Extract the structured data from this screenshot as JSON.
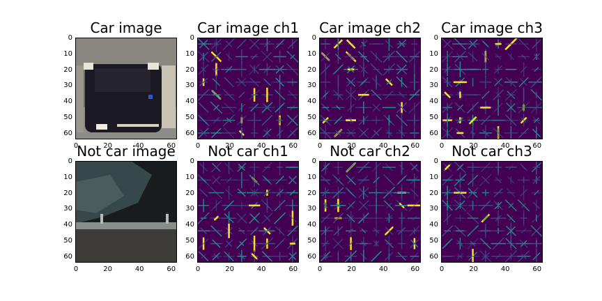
{
  "panels": [
    {
      "title": "Car image",
      "kind": "photo-car"
    },
    {
      "title": "Car image ch1",
      "kind": "hog",
      "seed": 1
    },
    {
      "title": "Car image ch2",
      "kind": "hog",
      "seed": 2
    },
    {
      "title": "Car image ch3",
      "kind": "hog",
      "seed": 3
    },
    {
      "title": "Not car image",
      "kind": "photo-notcar"
    },
    {
      "title": "Not car ch1",
      "kind": "hog",
      "seed": 4
    },
    {
      "title": "Not car ch2",
      "kind": "hog",
      "seed": 5
    },
    {
      "title": "Not car ch3",
      "kind": "hog",
      "seed": 6
    }
  ],
  "axis": {
    "yticks": [
      "0",
      "10",
      "20",
      "30",
      "40",
      "50",
      "60"
    ],
    "xticks": [
      "0",
      "20",
      "40",
      "60"
    ]
  },
  "colors": {
    "hog_bg": "#440154",
    "hog_low": "#3b528b",
    "hog_mid": "#21918c",
    "hog_high": "#fde725"
  }
}
